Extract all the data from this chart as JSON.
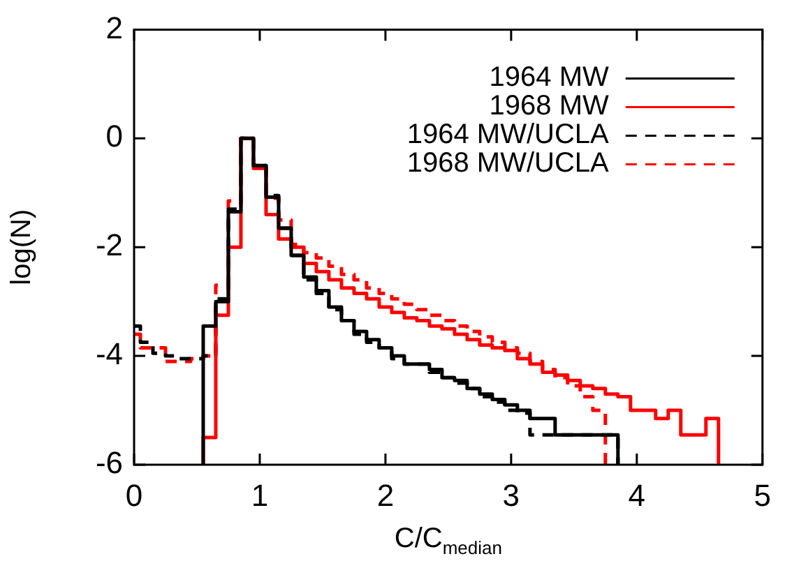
{
  "chart_data": {
    "type": "step",
    "xlabel": "C/C$_{median}$",
    "ylabel": "log(N)",
    "xlim": [
      0,
      5
    ],
    "xticks": [
      0,
      1,
      2,
      3,
      4,
      5
    ],
    "ylim": [
      -6,
      2
    ],
    "yticks": [
      -6,
      -4,
      -2,
      0,
      2
    ],
    "grid": false,
    "legend": "top right",
    "marker": "none",
    "series": [
      {
        "name": "1964 MW",
        "color": "#000000",
        "line_style": "solid",
        "x": [
          0.55,
          0.55,
          0.65,
          0.75,
          0.85,
          0.95,
          1.05,
          1.15,
          1.25,
          1.35,
          1.45,
          1.55,
          1.65,
          1.75,
          1.85,
          1.95,
          2.05,
          2.15,
          2.25,
          2.35,
          2.45,
          2.55,
          2.65,
          2.75,
          2.85,
          2.95,
          3.05,
          3.15,
          3.25,
          3.35,
          3.45,
          3.55,
          3.65,
          3.75,
          3.85
        ],
        "values": [
          -6,
          -3.45,
          -3.0,
          -1.35,
          0,
          -0.5,
          -1.08,
          -1.65,
          -2.15,
          -2.55,
          -2.8,
          -3.1,
          -3.35,
          -3.55,
          -3.7,
          -3.85,
          -4.0,
          -4.15,
          -4.15,
          -4.25,
          -4.4,
          -4.45,
          -4.6,
          -4.7,
          -4.8,
          -4.9,
          -5.0,
          -5.15,
          -5.15,
          -5.45,
          -5.45,
          -5.45,
          -5.45,
          -5.45,
          -6
        ]
      },
      {
        "name": "1968 MW",
        "color": "#ff0000",
        "line_style": "solid",
        "x": [
          0.55,
          0.55,
          0.65,
          0.75,
          0.85,
          0.95,
          1.05,
          1.15,
          1.25,
          1.35,
          1.45,
          1.55,
          1.65,
          1.75,
          1.85,
          1.95,
          2.05,
          2.15,
          2.25,
          2.35,
          2.45,
          2.55,
          2.65,
          2.75,
          2.85,
          2.95,
          3.05,
          3.15,
          3.25,
          3.35,
          3.45,
          3.55,
          3.65,
          3.75,
          3.85,
          3.95,
          4.05,
          4.15,
          4.25,
          4.35,
          4.45,
          4.55,
          4.65
        ],
        "values": [
          -6,
          -5.5,
          -3.25,
          -2.0,
          0,
          -0.55,
          -1.4,
          -1.85,
          -2.0,
          -2.3,
          -2.45,
          -2.6,
          -2.75,
          -2.85,
          -2.95,
          -3.1,
          -3.2,
          -3.3,
          -3.35,
          -3.45,
          -3.5,
          -3.6,
          -3.7,
          -3.8,
          -3.85,
          -3.9,
          -4.05,
          -4.15,
          -4.3,
          -4.35,
          -4.45,
          -4.55,
          -4.6,
          -4.7,
          -4.75,
          -5.0,
          -5.0,
          -5.15,
          -5.0,
          -5.45,
          -5.45,
          -5.15,
          -6
        ]
      },
      {
        "name": "1964 MW/UCLA",
        "color": "#000000",
        "line_style": "dashed",
        "x": [
          0,
          0.05,
          0.15,
          0.25,
          0.35,
          0.45,
          0.55,
          0.65,
          0.75,
          0.85,
          0.95,
          1.05,
          1.15,
          1.25,
          1.35,
          1.45,
          1.55,
          1.65,
          1.75,
          1.85,
          1.95,
          2.05,
          2.15,
          2.25,
          2.35,
          2.45,
          2.55,
          2.65,
          2.75,
          2.85,
          2.95,
          3.05,
          3.15,
          3.25,
          3.35,
          3.45,
          3.55,
          3.65,
          3.75,
          3.85
        ],
        "values": [
          -3.45,
          -3.75,
          -3.95,
          -4.0,
          -4.05,
          -4.05,
          -4.0,
          -2.95,
          -1.3,
          0,
          -0.5,
          -1.05,
          -1.65,
          -2.15,
          -2.6,
          -2.85,
          -3.15,
          -3.35,
          -3.6,
          -3.75,
          -3.85,
          -4.05,
          -4.15,
          -4.15,
          -4.3,
          -4.4,
          -4.5,
          -4.6,
          -4.75,
          -4.85,
          -5.0,
          -5.05,
          -5.45,
          -5.45,
          -5.45,
          -5.45,
          -5.45,
          -5.45,
          -5.45,
          -6
        ]
      },
      {
        "name": "1968 MW/UCLA",
        "color": "#ff0000",
        "line_style": "dashed",
        "x": [
          0,
          0.05,
          0.15,
          0.25,
          0.35,
          0.45,
          0.55,
          0.65,
          0.75,
          0.85,
          0.95,
          1.05,
          1.15,
          1.25,
          1.35,
          1.45,
          1.55,
          1.65,
          1.75,
          1.85,
          1.95,
          2.05,
          2.15,
          2.25,
          2.35,
          2.45,
          2.55,
          2.65,
          2.75,
          2.85,
          2.95,
          3.05,
          3.15,
          3.25,
          3.35,
          3.45,
          3.55,
          3.65,
          3.75
        ],
        "values": [
          -3.6,
          -3.85,
          -3.85,
          -4.1,
          -4.1,
          -4.05,
          -4.0,
          -2.7,
          -1.15,
          0,
          -0.5,
          -1.1,
          -1.5,
          -1.95,
          -2.1,
          -2.2,
          -2.35,
          -2.5,
          -2.6,
          -2.75,
          -2.85,
          -2.95,
          -3.05,
          -3.15,
          -3.25,
          -3.35,
          -3.45,
          -3.55,
          -3.65,
          -3.75,
          -3.85,
          -3.95,
          -4.1,
          -4.25,
          -4.4,
          -4.55,
          -4.75,
          -5.0,
          -6
        ]
      }
    ]
  }
}
